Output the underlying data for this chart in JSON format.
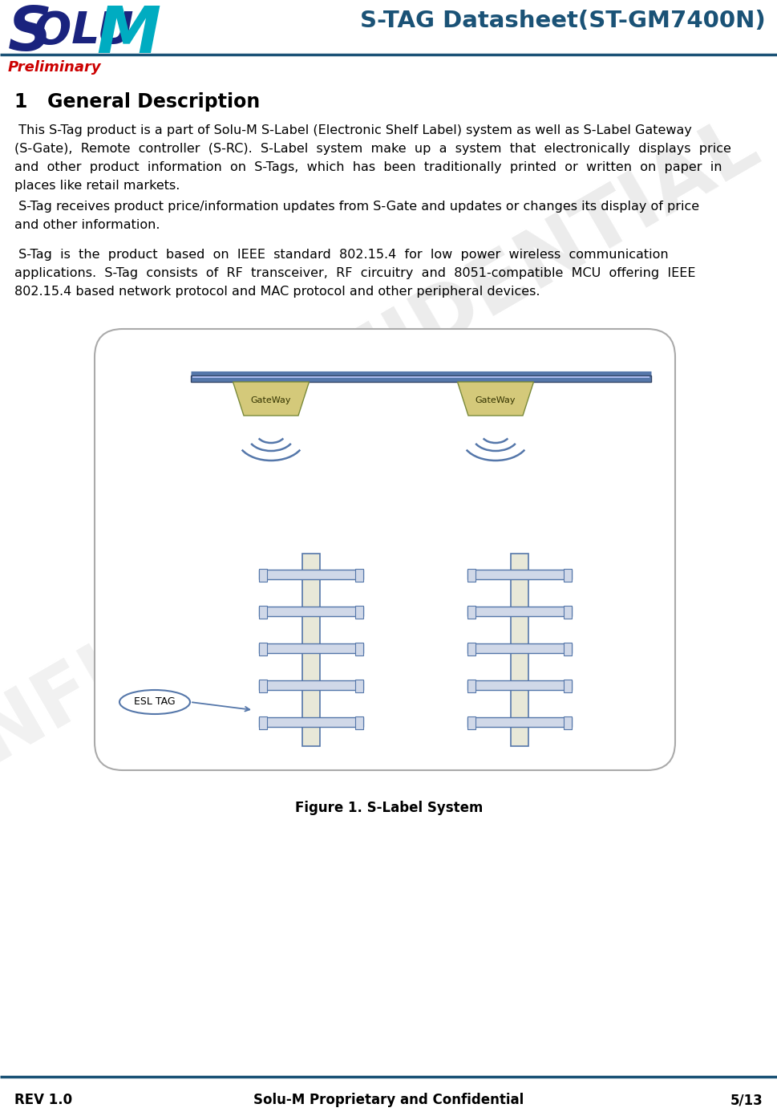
{
  "title": "S-TAG Datasheet(ST-GM7400N)",
  "title_color": "#1a5276",
  "preliminary_text": "Preliminary",
  "preliminary_color": "#cc0000",
  "section_title": "1   General Description",
  "para1_lines": [
    " This S-Tag product is a part of Solu-M S-Label (Electronic Shelf Label) system as well as S-Label Gateway",
    "(S-Gate),  Remote  controller  (S-RC).  S-Label  system  make  up  a  system  that  electronically  displays  price",
    "and  other  product  information  on  S-Tags,  which  has  been  traditionally  printed  or  written  on  paper  in",
    "places like retail markets."
  ],
  "para2_lines": [
    " S-Tag receives product price/information updates from S-Gate and updates or changes its display of price",
    "and other information."
  ],
  "para3_lines": [
    " S-Tag  is  the  product  based  on  IEEE  standard  802.15.4  for  low  power  wireless  communication",
    "applications.  S-Tag  consists  of  RF  transceiver,  RF  circuitry  and  8051-compatible  MCU  offering  IEEE",
    "802.15.4 based network protocol and MAC protocol and other peripheral devices."
  ],
  "figure_caption": "Figure 1. S-Label System",
  "footer_left": "REV 1.0",
  "footer_center": "Solu-M Proprietary and Confidential",
  "footer_right": "5/13",
  "logo_s_color": "#1a237e",
  "logo_olu_color": "#1a237e",
  "logo_m_color": "#00acc1",
  "header_line_color": "#1a5276",
  "footer_line_color": "#1a5276",
  "bg_color": "#ffffff",
  "text_color": "#000000",
  "watermark_text": "CONFIDENTIAL",
  "watermark_color": "#d0d0d0",
  "gateway_fill": "#d4c97a",
  "gateway_edge": "#7a8a3a",
  "gateway_text": "GateWay",
  "esl_tag_text": "ESL TAG",
  "diagram_border_color": "#aaaaaa",
  "diagram_bg": "#ffffff",
  "rail_fill": "#5577aa",
  "rail_edge": "#334466",
  "shelf_post_fill": "#e8e8d8",
  "shelf_post_edge": "#5577aa",
  "shelf_plank_fill": "#d0d8e8",
  "shelf_plank_edge": "#5577aa",
  "arc_color": "#5577aa",
  "esl_label_fill": "#ffffff",
  "esl_label_edge": "#5577aa"
}
